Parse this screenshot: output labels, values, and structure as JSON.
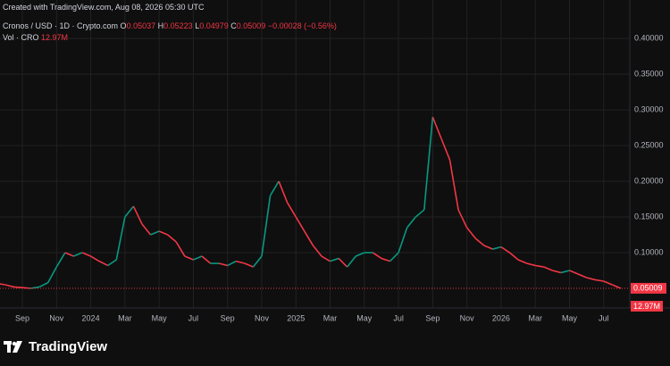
{
  "header": {
    "created": "Created with TradingView.com, Aug 08, 2026 05:30 UTC",
    "symbol": "Cronos / USD · 1D · Crypto.com",
    "ohlc": [
      {
        "label": "O",
        "value": "0.05037"
      },
      {
        "label": "H",
        "value": "0.05223"
      },
      {
        "label": "L",
        "value": "0.04979"
      },
      {
        "label": "C",
        "value": "0.05009"
      }
    ],
    "change": "−0.00028 (−0.56%)",
    "volume_name": "Vol · CRO",
    "volume_value": "12.97M"
  },
  "chart_data": {
    "type": "line",
    "categories": [
      null,
      null,
      null,
      "Sep",
      null,
      null,
      null,
      "Nov",
      null,
      null,
      null,
      "2024",
      null,
      null,
      null,
      "Mar",
      null,
      null,
      null,
      "May",
      null,
      null,
      null,
      "Jul",
      null,
      null,
      null,
      "Sep",
      null,
      null,
      null,
      "Nov",
      null,
      null,
      null,
      "2025",
      null,
      null,
      null,
      "Mar",
      null,
      null,
      null,
      "May",
      null,
      null,
      null,
      "Jul",
      null,
      null,
      null,
      "Sep",
      null,
      null,
      null,
      "Nov",
      null,
      null,
      null,
      "2026",
      null,
      null,
      null,
      "Mar",
      null,
      null,
      null,
      "May",
      null,
      null,
      null,
      "Jul",
      null,
      null
    ],
    "series": [
      {
        "name": "Cronos / USD",
        "up_color": "#089981",
        "down_color": "#f23645",
        "values": [
          0.057,
          0.055,
          0.052,
          0.051,
          0.05,
          0.052,
          0.058,
          0.08,
          0.1,
          0.095,
          0.1,
          0.095,
          0.088,
          0.082,
          0.09,
          0.15,
          0.165,
          0.14,
          0.125,
          0.13,
          0.125,
          0.115,
          0.095,
          0.09,
          0.095,
          0.085,
          0.085,
          0.082,
          0.088,
          0.085,
          0.08,
          0.095,
          0.18,
          0.2,
          0.17,
          0.15,
          0.13,
          0.11,
          0.095,
          0.088,
          0.092,
          0.08,
          0.095,
          0.1,
          0.1,
          0.092,
          0.088,
          0.1,
          0.135,
          0.15,
          0.16,
          0.29,
          0.26,
          0.23,
          0.16,
          0.135,
          0.12,
          0.11,
          0.105,
          0.108,
          0.1,
          0.09,
          0.085,
          0.082,
          0.08,
          0.075,
          0.072,
          0.075,
          0.07,
          0.065,
          0.062,
          0.06,
          0.055,
          0.05
        ]
      }
    ],
    "ylim": [
      0.0225,
      0.454
    ],
    "yticks": [
      {
        "value": 0.1,
        "label": "0.10000"
      },
      {
        "value": 0.15,
        "label": "0.15000"
      },
      {
        "value": 0.2,
        "label": "0.20000"
      },
      {
        "value": 0.25,
        "label": "0.25000"
      },
      {
        "value": 0.3,
        "label": "0.30000"
      },
      {
        "value": 0.35,
        "label": "0.35000"
      },
      {
        "value": 0.4,
        "label": "0.40000"
      }
    ],
    "grid": true,
    "last_price": 0.05009
  },
  "footer": {
    "brand": "TradingView"
  }
}
